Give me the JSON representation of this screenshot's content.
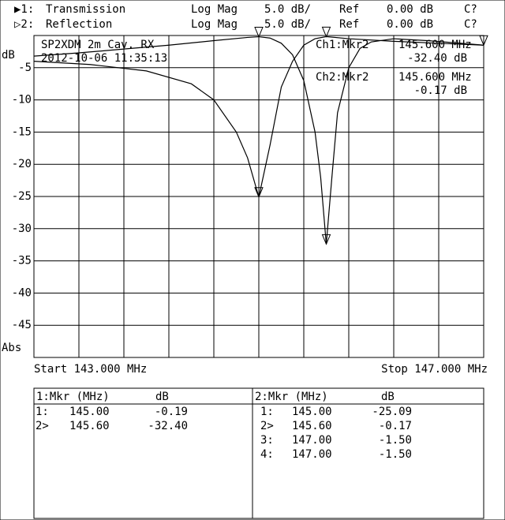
{
  "chart_data": {
    "type": "line",
    "title": "SP2XDM 2m Cav. RX",
    "subtitle": "2012-10-06 11:35:13",
    "ylabel": "dB",
    "ylabel_bottom": "Abs",
    "start_label": "Start 143.000 MHz",
    "stop_label": "Stop 147.000 MHz",
    "xlim": [
      143,
      147
    ],
    "ylim": [
      -50,
      0
    ],
    "yticks": [
      -5,
      -10,
      -15,
      -20,
      -25,
      -30,
      -35,
      -40,
      -45
    ],
    "xgrid_divisions": 10,
    "grid": true,
    "series": [
      {
        "prefix": "▶1:",
        "name": "Transmission",
        "format": "Log Mag",
        "scale": "5.0 dB/",
        "ref_label": "Ref",
        "ref": "0.00 dB",
        "cal": "C?",
        "color": "#000000",
        "x": [
          143.0,
          143.4,
          143.8,
          144.2,
          144.6,
          144.9,
          145.0,
          145.1,
          145.2,
          145.3,
          145.4,
          145.5,
          145.55,
          145.6,
          145.65,
          145.7,
          145.8,
          145.9,
          146.0,
          146.2,
          146.5,
          146.8,
          147.0
        ],
        "values": [
          -3.2,
          -2.7,
          -2.1,
          -1.5,
          -0.8,
          -0.3,
          -0.19,
          -0.4,
          -1.2,
          -3,
          -7,
          -15,
          -22,
          -32.4,
          -22,
          -12,
          -5,
          -2,
          -1,
          -0.5,
          -0.8,
          -1.2,
          -1.5
        ],
        "markers": [
          {
            "x": 145.0,
            "value": -0.19
          },
          {
            "x": 145.6,
            "value": -32.4
          }
        ]
      },
      {
        "prefix": "▷2:",
        "name": "Reflection",
        "format": "Log Mag",
        "scale": "5.0 dB/",
        "ref_label": "Ref",
        "ref": "0.00 dB",
        "cal": "C?",
        "color": "#000000",
        "x": [
          143.0,
          143.5,
          144.0,
          144.4,
          144.6,
          144.8,
          144.9,
          145.0,
          145.1,
          145.2,
          145.3,
          145.4,
          145.5,
          145.6,
          145.8,
          146.2,
          146.6,
          147.0
        ],
        "values": [
          -4,
          -4.5,
          -5.5,
          -7.5,
          -10,
          -15,
          -19,
          -25.09,
          -17,
          -8,
          -4,
          -1.5,
          -0.5,
          -0.17,
          -0.5,
          -0.9,
          -1.2,
          -1.5
        ],
        "markers": [
          {
            "x": 145.0,
            "value": -25.09
          },
          {
            "x": 145.6,
            "value": -0.17
          },
          {
            "x": 147.0,
            "value": -1.5
          }
        ]
      }
    ],
    "readouts": [
      {
        "label": "Ch1:Mkr2",
        "freq": "145.600 MHz",
        "level": "-32.40 dB"
      },
      {
        "label": "Ch2:Mkr2",
        "freq": "145.600 MHz",
        "level": "-0.17 dB"
      }
    ],
    "marker_tables": [
      {
        "header": [
          "1:Mkr (MHz)",
          "dB"
        ],
        "rows": [
          [
            "1:",
            "145.00",
            "-0.19"
          ],
          [
            "2>",
            "145.60",
            "-32.40"
          ]
        ]
      },
      {
        "header": [
          "2:Mkr (MHz)",
          "dB"
        ],
        "rows": [
          [
            "1:",
            "145.00",
            "-25.09"
          ],
          [
            "2>",
            "145.60",
            "-0.17"
          ],
          [
            "3:",
            "147.00",
            "-1.50"
          ],
          [
            "4:",
            "147.00",
            "-1.50"
          ]
        ]
      }
    ]
  }
}
